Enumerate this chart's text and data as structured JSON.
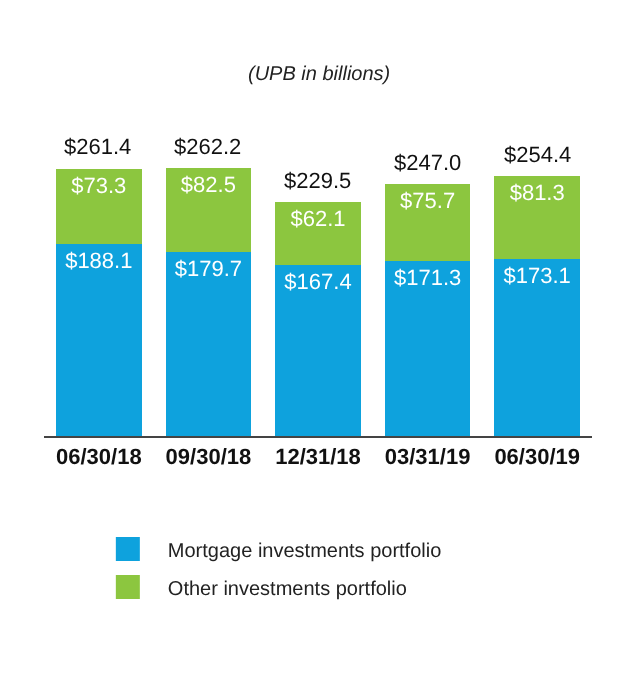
{
  "chart_data": {
    "type": "bar",
    "subtitle": "(UPB in billions)",
    "categories": [
      "06/30/18",
      "09/30/18",
      "12/31/18",
      "03/31/19",
      "06/30/19"
    ],
    "stacked": true,
    "legend": "bottom",
    "series": [
      {
        "name": "Mortgage investments portfolio",
        "color": "#0ea2dd",
        "values": [
          188.1,
          179.7,
          167.4,
          171.3,
          173.1
        ],
        "value_labels": [
          "$188.1",
          "$179.7",
          "$167.4",
          "$171.3",
          "$173.1"
        ]
      },
      {
        "name": "Other investments portfolio",
        "color": "#8cc63f",
        "values": [
          73.3,
          82.5,
          62.1,
          75.7,
          81.3
        ],
        "value_labels": [
          "$73.3",
          "$82.5",
          "$62.1",
          "$75.7",
          "$81.3"
        ]
      }
    ],
    "totals": [
      "$261.4",
      "$262.2",
      "$229.5",
      "$247.0",
      "$254.4"
    ]
  }
}
